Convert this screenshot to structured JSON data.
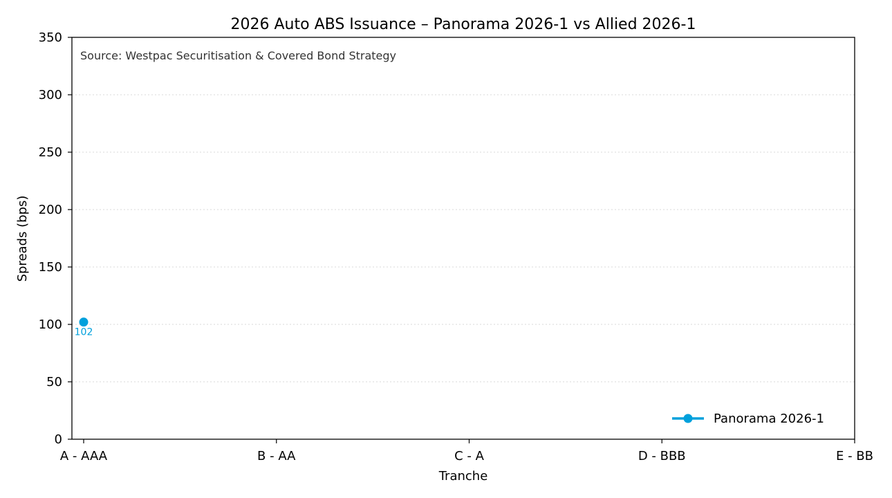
{
  "chart_data": {
    "type": "line",
    "title": "2026 Auto ABS Issuance – Panorama 2026-1 vs Allied 2026-1",
    "xlabel": "Tranche",
    "ylabel": "Spreads (bps)",
    "categories": [
      "A - AAA",
      "B - AA",
      "C - A",
      "D - BBB",
      "E - BB"
    ],
    "ylim": [
      0,
      350
    ],
    "yticks": [
      0,
      50,
      100,
      150,
      200,
      250,
      300,
      350
    ],
    "grid": "horizontal dotted",
    "annotation": "Source: Westpac Securitisation & Covered Bond Strategy",
    "legend_position": "lower-right",
    "series": [
      {
        "name": "Panorama 2026-1",
        "color": "#00a0dc",
        "values": [
          102,
          null,
          null,
          null,
          null
        ],
        "data_labels": [
          "102",
          null,
          null,
          null,
          null
        ]
      }
    ]
  }
}
